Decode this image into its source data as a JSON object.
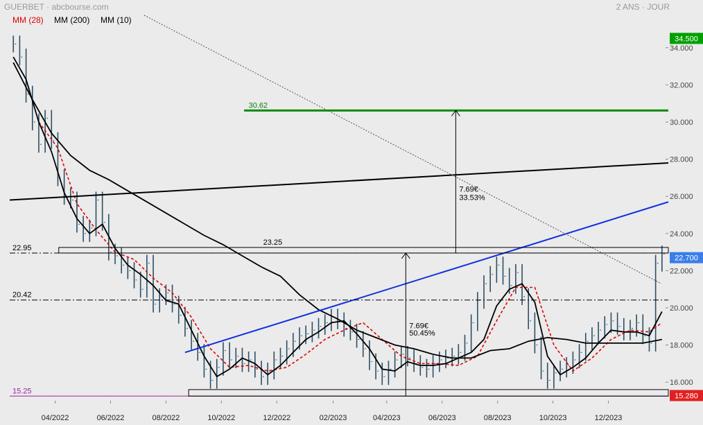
{
  "header": {
    "ticker_source": "GUERBET · abcbourse.com",
    "period": "2 ANS · JOUR"
  },
  "legend": [
    {
      "label": "MM (28)",
      "color": "#e00000"
    },
    {
      "label": "MM (200)",
      "color": "#000000"
    },
    {
      "label": "MM (10)",
      "color": "#000000"
    }
  ],
  "chart_data": {
    "type": "line",
    "title": "GUERBET",
    "ylim": [
      15.0,
      35.0
    ],
    "y_ticks": [
      "16.000",
      "18.000",
      "20.000",
      "22.000",
      "24.000",
      "26.000",
      "28.000",
      "30.000",
      "32.000",
      "34.000"
    ],
    "x_ticks": [
      "04/2022",
      "06/2022",
      "08/2022",
      "10/2022",
      "12/2022",
      "02/2023",
      "04/2023",
      "06/2023",
      "08/2023",
      "10/2023",
      "12/2023"
    ],
    "x_domain": [
      "2022-02-25",
      "2024-02-20"
    ],
    "price_series": {
      "name": "price",
      "x": [
        "2022-03-01",
        "2022-03-08",
        "2022-03-15",
        "2022-03-22",
        "2022-03-29",
        "2022-04-05",
        "2022-04-12",
        "2022-04-19",
        "2022-04-26",
        "2022-05-03",
        "2022-05-10",
        "2022-05-17",
        "2022-05-24",
        "2022-05-31",
        "2022-06-07",
        "2022-06-14",
        "2022-06-21",
        "2022-06-28",
        "2022-07-05",
        "2022-07-12",
        "2022-07-19",
        "2022-07-26",
        "2022-08-02",
        "2022-08-09",
        "2022-08-16",
        "2022-08-23",
        "2022-08-30",
        "2022-09-06",
        "2022-09-13",
        "2022-09-20",
        "2022-09-27",
        "2022-10-04",
        "2022-10-11",
        "2022-10-18",
        "2022-10-25",
        "2022-11-01",
        "2022-11-08",
        "2022-11-15",
        "2022-11-22",
        "2022-11-29",
        "2022-12-06",
        "2022-12-13",
        "2022-12-20",
        "2022-12-27",
        "2023-01-03",
        "2023-01-10",
        "2023-01-17",
        "2023-01-24",
        "2023-01-31",
        "2023-02-07",
        "2023-02-14",
        "2023-02-21",
        "2023-02-28",
        "2023-03-07",
        "2023-03-14",
        "2023-03-21",
        "2023-03-28",
        "2023-04-04",
        "2023-04-11",
        "2023-04-18",
        "2023-04-25",
        "2023-05-02",
        "2023-05-09",
        "2023-05-16",
        "2023-05-23",
        "2023-05-30",
        "2023-06-06",
        "2023-06-13",
        "2023-06-20",
        "2023-06-27",
        "2023-07-04",
        "2023-07-11",
        "2023-07-18",
        "2023-07-25",
        "2023-08-01",
        "2023-08-08",
        "2023-08-15",
        "2023-08-22",
        "2023-08-29",
        "2023-09-05",
        "2023-09-12",
        "2023-09-19",
        "2023-09-26",
        "2023-10-03",
        "2023-10-10",
        "2023-10-17",
        "2023-10-24",
        "2023-10-31",
        "2023-11-07",
        "2023-11-14",
        "2023-11-21",
        "2023-11-28",
        "2023-12-05",
        "2023-12-12",
        "2023-12-19",
        "2023-12-26",
        "2024-01-02",
        "2024-01-09",
        "2024-01-16",
        "2024-01-23",
        "2024-01-30",
        "2024-02-06",
        "2024-02-13"
      ],
      "values": [
        34.2,
        33.5,
        31.5,
        30.0,
        28.8,
        30.2,
        29.0,
        27.0,
        26.0,
        25.8,
        24.5,
        24.0,
        24.3,
        25.8,
        24.6,
        23.0,
        22.8,
        22.3,
        22.0,
        21.5,
        21.0,
        22.4,
        20.2,
        20.6,
        20.8,
        20.2,
        19.6,
        18.9,
        18.2,
        17.6,
        16.7,
        16.1,
        16.8,
        17.7,
        17.2,
        17.4,
        17.0,
        17.2,
        16.7,
        16.3,
        16.6,
        17.2,
        17.4,
        17.8,
        18.2,
        18.5,
        18.6,
        18.8,
        19.0,
        19.2,
        19.5,
        19.3,
        18.9,
        18.7,
        18.3,
        17.8,
        17.1,
        16.6,
        16.3,
        16.7,
        17.2,
        17.5,
        17.3,
        17.0,
        16.8,
        16.7,
        17.0,
        17.2,
        17.3,
        17.4,
        17.6,
        18.1,
        19.2,
        20.4,
        21.3,
        21.8,
        22.3,
        21.7,
        21.2,
        21.9,
        20.6,
        19.3,
        18.0,
        16.6,
        16.1,
        16.5,
        16.7,
        16.9,
        17.2,
        17.6,
        18.2,
        18.5,
        18.8,
        19.1,
        19.3,
        19.0,
        18.7,
        18.9,
        19.2,
        18.5,
        18.1,
        22.4,
        22.9
      ]
    },
    "moving_averages": [
      {
        "name": "MM (28)",
        "style": "dashed",
        "color": "#e00000",
        "x": [
          "2022-03-29",
          "2022-04-19",
          "2022-05-10",
          "2022-05-31",
          "2022-06-21",
          "2022-07-12",
          "2022-08-02",
          "2022-08-23",
          "2022-09-13",
          "2022-10-04",
          "2022-10-25",
          "2022-11-15",
          "2022-12-06",
          "2022-12-27",
          "2023-01-17",
          "2023-02-07",
          "2023-02-28",
          "2023-03-21",
          "2023-04-11",
          "2023-05-02",
          "2023-05-23",
          "2023-06-13",
          "2023-07-04",
          "2023-07-25",
          "2023-08-15",
          "2023-09-05",
          "2023-09-26",
          "2023-10-17",
          "2023-11-07",
          "2023-11-28",
          "2023-12-19",
          "2024-01-09",
          "2024-01-30",
          "2024-02-13"
        ],
        "values": [
          30.0,
          28.6,
          25.6,
          24.2,
          23.0,
          22.6,
          21.6,
          20.8,
          19.5,
          17.8,
          16.8,
          16.9,
          16.6,
          16.8,
          17.5,
          18.3,
          18.8,
          19.2,
          18.3,
          17.4,
          17.0,
          17.0,
          16.9,
          17.4,
          19.3,
          21.1,
          21.1,
          18.0,
          16.6,
          17.3,
          18.3,
          18.8,
          18.7,
          19.2
        ]
      },
      {
        "name": "MM (200)",
        "style": "solid",
        "color": "#000000",
        "x": [
          "2022-03-01",
          "2022-03-22",
          "2022-04-12",
          "2022-05-03",
          "2022-05-24",
          "2022-06-14",
          "2022-07-05",
          "2022-07-26",
          "2022-08-16",
          "2022-09-06",
          "2022-09-27",
          "2022-10-18",
          "2022-11-08",
          "2022-11-29",
          "2022-12-20",
          "2023-01-10",
          "2023-01-31",
          "2023-02-21",
          "2023-03-14",
          "2023-04-04",
          "2023-04-25",
          "2023-05-16",
          "2023-06-06",
          "2023-06-27",
          "2023-07-18",
          "2023-08-08",
          "2023-08-29",
          "2023-09-19",
          "2023-10-10",
          "2023-10-31",
          "2023-11-21",
          "2023-12-12",
          "2024-01-02",
          "2024-01-23",
          "2024-02-13"
        ],
        "values": [
          33.2,
          31.2,
          29.4,
          28.2,
          27.4,
          26.9,
          26.3,
          25.7,
          25.1,
          24.5,
          23.9,
          23.4,
          22.8,
          22.2,
          21.7,
          20.7,
          19.9,
          19.4,
          18.8,
          18.4,
          18.0,
          17.8,
          17.5,
          17.3,
          17.3,
          17.7,
          17.8,
          18.2,
          18.4,
          18.3,
          18.1,
          18.1,
          18.1,
          18.1,
          18.3
        ]
      },
      {
        "name": "MM (10)",
        "style": "solid",
        "color": "#000000",
        "x": [
          "2022-03-01",
          "2022-03-15",
          "2022-03-29",
          "2022-04-12",
          "2022-04-26",
          "2022-05-10",
          "2022-05-24",
          "2022-06-07",
          "2022-06-21",
          "2022-07-05",
          "2022-07-19",
          "2022-08-02",
          "2022-08-16",
          "2022-08-30",
          "2022-09-13",
          "2022-09-27",
          "2022-10-11",
          "2022-10-25",
          "2022-11-08",
          "2022-11-22",
          "2022-12-06",
          "2022-12-20",
          "2023-01-03",
          "2023-01-17",
          "2023-01-31",
          "2023-02-14",
          "2023-02-28",
          "2023-03-14",
          "2023-03-28",
          "2023-04-11",
          "2023-04-25",
          "2023-05-09",
          "2023-05-23",
          "2023-06-06",
          "2023-06-20",
          "2023-07-04",
          "2023-07-18",
          "2023-08-01",
          "2023-08-15",
          "2023-08-29",
          "2023-09-12",
          "2023-09-26",
          "2023-10-10",
          "2023-10-24",
          "2023-11-07",
          "2023-11-21",
          "2023-12-05",
          "2023-12-19",
          "2024-01-02",
          "2024-01-16",
          "2024-01-30",
          "2024-02-13"
        ],
        "values": [
          33.5,
          32.3,
          30.0,
          28.4,
          26.2,
          24.8,
          24.0,
          24.5,
          23.2,
          22.3,
          21.8,
          21.2,
          20.4,
          20.2,
          18.8,
          17.4,
          16.3,
          16.7,
          17.3,
          17.0,
          16.4,
          16.9,
          17.6,
          18.3,
          18.7,
          19.2,
          19.3,
          18.6,
          17.8,
          16.7,
          16.6,
          17.1,
          16.9,
          16.9,
          17.0,
          17.3,
          17.6,
          18.3,
          20.1,
          21.0,
          21.3,
          20.3,
          17.4,
          16.4,
          16.8,
          17.3,
          18.1,
          18.8,
          18.7,
          18.7,
          18.5,
          19.8
        ]
      }
    ],
    "annotations": {
      "horizontal_lines": [
        {
          "label": "22.95",
          "value": 22.95
        },
        {
          "label": "20.42",
          "value": 20.42
        },
        {
          "label": "15.25",
          "value": 15.25
        }
      ],
      "target_line": {
        "label": "30.62",
        "value": 30.62
      },
      "zone_labels": [
        "23.25"
      ],
      "measure_1": {
        "label1": "7.69€",
        "label2": "33.53%"
      },
      "measure_2": {
        "label1": "7.69€",
        "label2": "50.45%"
      },
      "price_badges": [
        {
          "label": "34.500",
          "value": 34.5,
          "color": "#00a000"
        },
        {
          "label": "22.700",
          "value": 22.7,
          "color": "#3a7ee8"
        },
        {
          "label": "15.280",
          "value": 15.28,
          "color": "#e02020"
        }
      ]
    }
  }
}
